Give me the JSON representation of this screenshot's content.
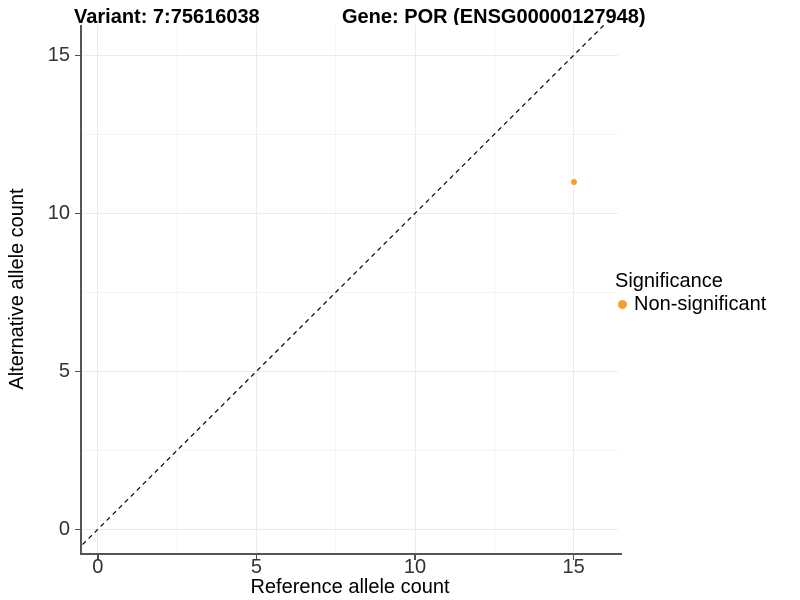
{
  "titles": {
    "variant": "Variant: 7:75616038",
    "gene": "Gene: POR (ENSG00000127948)"
  },
  "chart_data": {
    "type": "scatter",
    "xlabel": "Reference allele count",
    "ylabel": "Alternative allele count",
    "xlim": [
      -0.5,
      16.4
    ],
    "ylim": [
      -0.75,
      15.96
    ],
    "xticks": [
      0,
      5,
      10,
      15
    ],
    "yticks": [
      0,
      5,
      10,
      15
    ],
    "xticks_minor": [
      2.5,
      7.5,
      12.5
    ],
    "yticks_minor": [
      2.5,
      7.5,
      12.5
    ],
    "grid": "major and minor gridlines on white panel",
    "identity_line": {
      "equation": "y = x",
      "style": "dashed",
      "color": "#000000"
    },
    "points": [
      {
        "x": 15,
        "y": 11,
        "series": "Non-significant"
      }
    ],
    "legend": {
      "position": "right",
      "title": "Significance",
      "entries": [
        {
          "label": "Non-significant",
          "color": "#F89C2A",
          "marker": "circle"
        }
      ]
    }
  },
  "colors": {
    "background": "#FFFFFF",
    "axis_line": "#555555",
    "tick_mark": "#4D4D4D",
    "grid_major": "#EBEBEB",
    "grid_minor": "#F4F4F4",
    "tick_label": "#333333",
    "point": "#F89C2A",
    "identity_line": "#000000"
  }
}
